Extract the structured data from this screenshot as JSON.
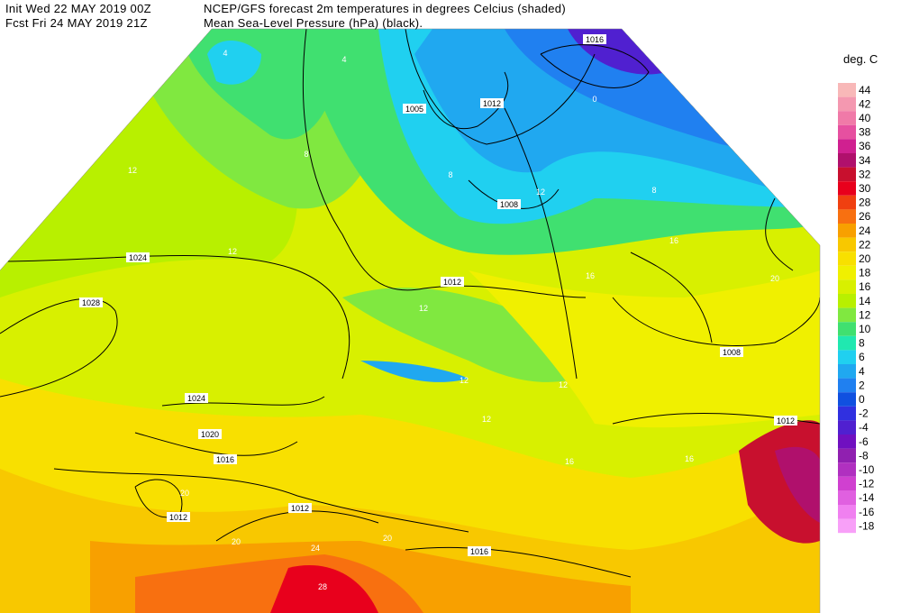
{
  "header": {
    "init": "Init  Wed 22 MAY 2019 00Z",
    "forecast": "Fcst Fri 24 MAY 2019 21Z",
    "title": "NCEP/GFS forecast 2m temperatures in degrees Celcius (shaded)",
    "subtitle": "Mean Sea-Level Pressure (hPa) (black)."
  },
  "legend": {
    "title": "deg. C",
    "levels": [
      {
        "label": "44",
        "color": "#f8b8b8"
      },
      {
        "label": "42",
        "color": "#f498b0"
      },
      {
        "label": "40",
        "color": "#f07aa8"
      },
      {
        "label": "38",
        "color": "#e650a0"
      },
      {
        "label": "36",
        "color": "#d02090"
      },
      {
        "label": "34",
        "color": "#b0106c"
      },
      {
        "label": "32",
        "color": "#c8102e"
      },
      {
        "label": "30",
        "color": "#e8001c"
      },
      {
        "label": "28",
        "color": "#f04010"
      },
      {
        "label": "26",
        "color": "#f87010"
      },
      {
        "label": "24",
        "color": "#f8a000"
      },
      {
        "label": "22",
        "color": "#f8c800"
      },
      {
        "label": "20",
        "color": "#f8e000"
      },
      {
        "label": "18",
        "color": "#f0f000"
      },
      {
        "label": "16",
        "color": "#d8f000"
      },
      {
        "label": "14",
        "color": "#b8f000"
      },
      {
        "label": "12",
        "color": "#80e840"
      },
      {
        "label": "10",
        "color": "#40e070"
      },
      {
        "label": "8",
        "color": "#20e8b0"
      },
      {
        "label": "6",
        "color": "#20d0f0"
      },
      {
        "label": "4",
        "color": "#20a8f0"
      },
      {
        "label": "2",
        "color": "#2080f0"
      },
      {
        "label": "0",
        "color": "#1050e0"
      },
      {
        "label": "-2",
        "color": "#3030e0"
      },
      {
        "label": "-4",
        "color": "#5020d0"
      },
      {
        "label": "-6",
        "color": "#7010c0"
      },
      {
        "label": "-8",
        "color": "#9020b0"
      },
      {
        "label": "-10",
        "color": "#b030c0"
      },
      {
        "label": "-12",
        "color": "#d040d0"
      },
      {
        "label": "-14",
        "color": "#e060e0"
      },
      {
        "label": "-16",
        "color": "#f080f0"
      },
      {
        "label": "-18",
        "color": "#f8a0f8"
      }
    ]
  },
  "map": {
    "pressure_labels": [
      "1016",
      "1005",
      "1012",
      "1008",
      "1024",
      "1028",
      "1012",
      "1008",
      "1024",
      "1020",
      "1016",
      "1012",
      "1012",
      "1016",
      "1012"
    ],
    "temperature_labels": [
      "4",
      "4",
      "8",
      "12",
      "12",
      "12",
      "8",
      "12",
      "16",
      "16",
      "20",
      "16",
      "12",
      "20",
      "20",
      "24",
      "28",
      "20",
      "16",
      "12",
      "0",
      "8",
      "12"
    ]
  }
}
